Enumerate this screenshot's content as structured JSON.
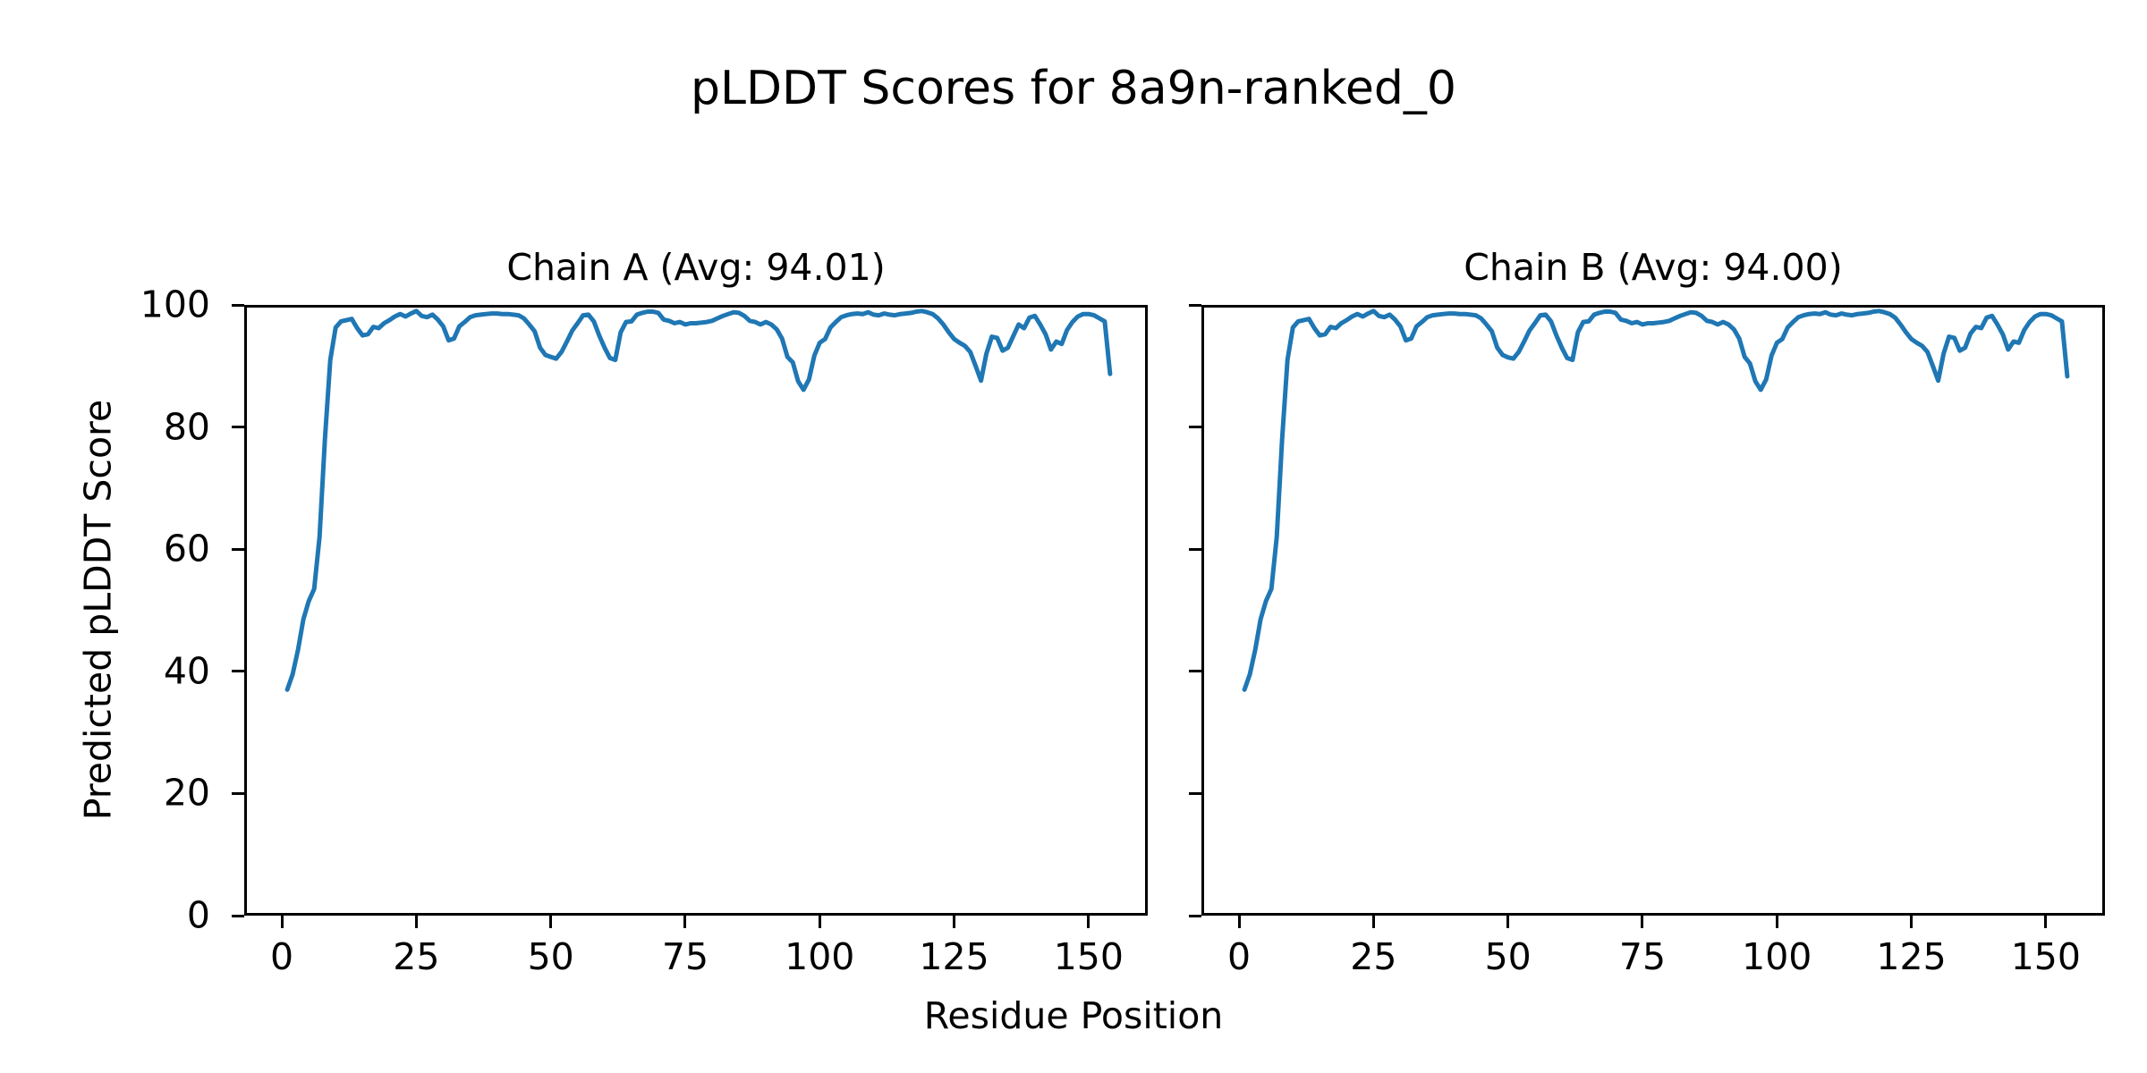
{
  "figure": {
    "background": "#ffffff",
    "text_color": "#000000"
  },
  "chart_data": {
    "type": "line",
    "title": "pLDDT Scores for 8a9n-ranked_0",
    "xlabel": "Residue Position",
    "ylabel": "Predicted pLDDT Score",
    "grid": false,
    "legend": "none",
    "line_color": "#1f77b4",
    "xlim": [
      -7,
      161
    ],
    "ylim": [
      0,
      100
    ],
    "xticks": [
      0,
      25,
      50,
      75,
      100,
      125,
      150
    ],
    "yticks": [
      0,
      20,
      40,
      60,
      80,
      100
    ],
    "x_start": 1,
    "subplots": [
      {
        "name": "Chain A",
        "title": "Chain A (Avg: 94.01)",
        "avg": 94.01,
        "values": [
          37.0,
          39.5,
          43.5,
          48.5,
          51.5,
          53.5,
          62.0,
          78.0,
          91.0,
          96.3,
          97.3,
          97.5,
          97.7,
          96.2,
          95.0,
          95.2,
          96.4,
          96.2,
          97.0,
          97.5,
          98.1,
          98.5,
          98.1,
          98.6,
          99.0,
          98.2,
          98.0,
          98.4,
          97.6,
          96.5,
          94.2,
          94.5,
          96.5,
          97.2,
          98.0,
          98.3,
          98.4,
          98.5,
          98.6,
          98.6,
          98.5,
          98.5,
          98.4,
          98.3,
          97.8,
          96.8,
          95.7,
          93.0,
          91.8,
          91.5,
          91.2,
          92.3,
          94.0,
          95.8,
          97.0,
          98.3,
          98.4,
          97.3,
          95.0,
          93.0,
          91.3,
          91.0,
          95.5,
          97.2,
          97.3,
          98.4,
          98.7,
          98.9,
          98.9,
          98.7,
          97.6,
          97.4,
          97.0,
          97.2,
          96.8,
          97.0,
          97.0,
          97.1,
          97.2,
          97.4,
          97.8,
          98.2,
          98.5,
          98.8,
          98.7,
          98.2,
          97.4,
          97.2,
          96.8,
          97.2,
          96.8,
          96.0,
          94.5,
          91.5,
          90.6,
          87.5,
          86.1,
          87.8,
          91.7,
          93.8,
          94.4,
          96.3,
          97.2,
          98.0,
          98.3,
          98.5,
          98.6,
          98.5,
          98.8,
          98.4,
          98.3,
          98.6,
          98.4,
          98.3,
          98.5,
          98.6,
          98.7,
          98.9,
          99.0,
          98.8,
          98.5,
          97.8,
          96.8,
          95.5,
          94.4,
          93.8,
          93.3,
          92.3,
          90.0,
          87.6,
          92.0,
          94.8,
          94.6,
          92.5,
          93.0,
          94.9,
          96.8,
          96.2,
          97.9,
          98.2,
          96.8,
          95.2,
          92.7,
          94.0,
          93.6,
          95.9,
          97.2,
          98.1,
          98.5,
          98.5,
          98.3,
          97.8,
          97.3,
          88.7
        ]
      },
      {
        "name": "Chain B",
        "title": "Chain B (Avg: 94.00)",
        "avg": 94.0,
        "values": [
          37.0,
          39.5,
          43.5,
          48.5,
          51.5,
          53.5,
          62.0,
          78.0,
          91.0,
          96.3,
          97.3,
          97.5,
          97.7,
          96.2,
          95.0,
          95.2,
          96.4,
          96.2,
          97.0,
          97.5,
          98.1,
          98.5,
          98.1,
          98.6,
          99.0,
          98.2,
          98.0,
          98.4,
          97.6,
          96.5,
          94.2,
          94.5,
          96.5,
          97.2,
          98.0,
          98.3,
          98.4,
          98.5,
          98.6,
          98.6,
          98.5,
          98.5,
          98.4,
          98.3,
          97.8,
          96.8,
          95.7,
          93.0,
          91.8,
          91.4,
          91.2,
          92.3,
          94.0,
          95.8,
          97.0,
          98.3,
          98.4,
          97.3,
          95.0,
          93.0,
          91.3,
          91.0,
          95.5,
          97.2,
          97.3,
          98.4,
          98.7,
          98.9,
          98.9,
          98.7,
          97.6,
          97.4,
          97.0,
          97.2,
          96.8,
          97.0,
          97.0,
          97.1,
          97.2,
          97.4,
          97.8,
          98.2,
          98.5,
          98.8,
          98.7,
          98.2,
          97.4,
          97.2,
          96.8,
          97.2,
          96.8,
          96.0,
          94.5,
          91.5,
          90.4,
          87.5,
          86.1,
          87.8,
          91.7,
          93.8,
          94.4,
          96.3,
          97.2,
          98.0,
          98.3,
          98.5,
          98.6,
          98.5,
          98.8,
          98.4,
          98.3,
          98.6,
          98.4,
          98.3,
          98.5,
          98.6,
          98.7,
          98.9,
          99.0,
          98.8,
          98.5,
          97.9,
          96.8,
          95.5,
          94.4,
          93.8,
          93.3,
          92.3,
          90.0,
          87.6,
          92.0,
          94.8,
          94.6,
          92.5,
          93.0,
          95.3,
          96.4,
          96.2,
          97.9,
          98.2,
          96.8,
          95.2,
          92.7,
          94.0,
          93.8,
          95.9,
          97.2,
          98.1,
          98.5,
          98.5,
          98.3,
          97.8,
          97.3,
          88.3
        ]
      }
    ]
  }
}
